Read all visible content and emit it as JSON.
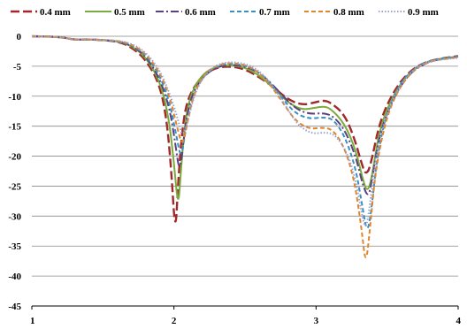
{
  "chart_data": {
    "type": "line",
    "title": "",
    "xlabel": "",
    "ylabel": "",
    "xlim": [
      1,
      4
    ],
    "ylim": [
      -45,
      0
    ],
    "x_ticks": [
      "1",
      "2",
      "3",
      "4"
    ],
    "y_ticks": [
      "0",
      "-5",
      "-10",
      "-15",
      "-20",
      "-25",
      "-30",
      "-35",
      "-40",
      "-45"
    ],
    "grid": "horizontal",
    "legend_position": "top",
    "series": [
      {
        "name": "0.4 mm",
        "color": "#a0282a",
        "dash": "long-dash",
        "points": [
          [
            1,
            0
          ],
          [
            1.2,
            -0.1
          ],
          [
            1.3,
            -0.6
          ],
          [
            1.4,
            -0.5
          ],
          [
            1.6,
            -0.8
          ],
          [
            1.7,
            -1.8
          ],
          [
            1.8,
            -3.8
          ],
          [
            1.9,
            -8
          ],
          [
            1.95,
            -14
          ],
          [
            1.98,
            -22
          ],
          [
            2.01,
            -33.5
          ],
          [
            2.03,
            -24
          ],
          [
            2.06,
            -15
          ],
          [
            2.1,
            -10
          ],
          [
            2.2,
            -6.5
          ],
          [
            2.3,
            -5.2
          ],
          [
            2.4,
            -5
          ],
          [
            2.5,
            -5.5
          ],
          [
            2.6,
            -6.8
          ],
          [
            2.7,
            -8.5
          ],
          [
            2.8,
            -10.5
          ],
          [
            2.9,
            -11.5
          ],
          [
            3.0,
            -11
          ],
          [
            3.05,
            -10.7
          ],
          [
            3.1,
            -11
          ],
          [
            3.2,
            -13
          ],
          [
            3.27,
            -17
          ],
          [
            3.33,
            -22
          ],
          [
            3.35,
            -23
          ],
          [
            3.38,
            -22
          ],
          [
            3.45,
            -14
          ],
          [
            3.55,
            -9
          ],
          [
            3.65,
            -6
          ],
          [
            3.75,
            -4.5
          ],
          [
            3.85,
            -3.8
          ],
          [
            4.0,
            -3.3
          ]
        ]
      },
      {
        "name": "0.5 mm",
        "color": "#7aab3c",
        "dash": "solid",
        "points": [
          [
            1,
            0
          ],
          [
            1.2,
            -0.1
          ],
          [
            1.3,
            -0.6
          ],
          [
            1.4,
            -0.5
          ],
          [
            1.6,
            -0.8
          ],
          [
            1.7,
            -1.6
          ],
          [
            1.8,
            -3.4
          ],
          [
            1.9,
            -7.4
          ],
          [
            1.96,
            -13
          ],
          [
            2.0,
            -21
          ],
          [
            2.03,
            -29
          ],
          [
            2.05,
            -22
          ],
          [
            2.08,
            -14
          ],
          [
            2.12,
            -9.5
          ],
          [
            2.2,
            -6.3
          ],
          [
            2.3,
            -5.0
          ],
          [
            2.4,
            -4.8
          ],
          [
            2.5,
            -5.2
          ],
          [
            2.6,
            -6.5
          ],
          [
            2.7,
            -8.6
          ],
          [
            2.8,
            -11
          ],
          [
            2.9,
            -12.3
          ],
          [
            3.0,
            -11.9
          ],
          [
            3.05,
            -11.7
          ],
          [
            3.1,
            -12
          ],
          [
            3.2,
            -14.5
          ],
          [
            3.28,
            -19
          ],
          [
            3.33,
            -24
          ],
          [
            3.36,
            -26
          ],
          [
            3.39,
            -24
          ],
          [
            3.45,
            -15
          ],
          [
            3.55,
            -9.5
          ],
          [
            3.65,
            -6.2
          ],
          [
            3.75,
            -4.6
          ],
          [
            3.85,
            -3.8
          ],
          [
            4.0,
            -3.4
          ]
        ]
      },
      {
        "name": "0.6 mm",
        "color": "#5b3f7e",
        "dash": "dash-dot",
        "points": [
          [
            1,
            0
          ],
          [
            1.2,
            -0.1
          ],
          [
            1.3,
            -0.6
          ],
          [
            1.4,
            -0.5
          ],
          [
            1.6,
            -0.8
          ],
          [
            1.7,
            -1.5
          ],
          [
            1.8,
            -3.2
          ],
          [
            1.9,
            -7
          ],
          [
            1.97,
            -12
          ],
          [
            2.01,
            -18
          ],
          [
            2.04,
            -23
          ],
          [
            2.07,
            -17
          ],
          [
            2.1,
            -12
          ],
          [
            2.15,
            -8.5
          ],
          [
            2.25,
            -5.7
          ],
          [
            2.35,
            -4.8
          ],
          [
            2.45,
            -4.8
          ],
          [
            2.55,
            -5.4
          ],
          [
            2.65,
            -7
          ],
          [
            2.75,
            -9.5
          ],
          [
            2.85,
            -12
          ],
          [
            2.95,
            -13
          ],
          [
            3.05,
            -12.8
          ],
          [
            3.12,
            -13.3
          ],
          [
            3.2,
            -15.5
          ],
          [
            3.28,
            -20
          ],
          [
            3.33,
            -25
          ],
          [
            3.37,
            -27
          ],
          [
            3.4,
            -23
          ],
          [
            3.45,
            -16
          ],
          [
            3.55,
            -10
          ],
          [
            3.65,
            -6.4
          ],
          [
            3.75,
            -4.7
          ],
          [
            3.85,
            -3.9
          ],
          [
            4.0,
            -3.4
          ]
        ]
      },
      {
        "name": "0.7 mm",
        "color": "#3c8fc0",
        "dash": "short-dash",
        "points": [
          [
            1,
            0
          ],
          [
            1.2,
            -0.1
          ],
          [
            1.3,
            -0.6
          ],
          [
            1.4,
            -0.5
          ],
          [
            1.6,
            -0.8
          ],
          [
            1.7,
            -1.4
          ],
          [
            1.8,
            -3.0
          ],
          [
            1.9,
            -6.5
          ],
          [
            1.97,
            -11
          ],
          [
            2.02,
            -17
          ],
          [
            2.05,
            -20.5
          ],
          [
            2.08,
            -16
          ],
          [
            2.12,
            -11
          ],
          [
            2.17,
            -8
          ],
          [
            2.25,
            -5.6
          ],
          [
            2.35,
            -4.6
          ],
          [
            2.45,
            -4.6
          ],
          [
            2.55,
            -5.3
          ],
          [
            2.65,
            -7
          ],
          [
            2.75,
            -10
          ],
          [
            2.85,
            -12.8
          ],
          [
            2.95,
            -13.8
          ],
          [
            3.05,
            -13.5
          ],
          [
            3.12,
            -13.8
          ],
          [
            3.2,
            -16.5
          ],
          [
            3.28,
            -22
          ],
          [
            3.33,
            -29
          ],
          [
            3.36,
            -33
          ],
          [
            3.39,
            -29
          ],
          [
            3.43,
            -20
          ],
          [
            3.5,
            -12.5
          ],
          [
            3.6,
            -7.5
          ],
          [
            3.7,
            -5.2
          ],
          [
            3.8,
            -4
          ],
          [
            4.0,
            -3.4
          ]
        ]
      },
      {
        "name": "0.8 mm",
        "color": "#e0852e",
        "dash": "short-dash",
        "points": [
          [
            1,
            0
          ],
          [
            1.2,
            -0.1
          ],
          [
            1.3,
            -0.6
          ],
          [
            1.4,
            -0.5
          ],
          [
            1.6,
            -0.7
          ],
          [
            1.7,
            -1.3
          ],
          [
            1.8,
            -2.8
          ],
          [
            1.9,
            -6
          ],
          [
            1.97,
            -10
          ],
          [
            2.02,
            -15
          ],
          [
            2.06,
            -18.5
          ],
          [
            2.09,
            -15
          ],
          [
            2.13,
            -10.5
          ],
          [
            2.18,
            -7.5
          ],
          [
            2.26,
            -5.3
          ],
          [
            2.35,
            -4.5
          ],
          [
            2.45,
            -4.5
          ],
          [
            2.55,
            -5.2
          ],
          [
            2.65,
            -7.2
          ],
          [
            2.75,
            -10.5
          ],
          [
            2.85,
            -14
          ],
          [
            2.95,
            -15.5
          ],
          [
            3.05,
            -15.2
          ],
          [
            3.12,
            -15.6
          ],
          [
            3.2,
            -18.5
          ],
          [
            3.27,
            -24
          ],
          [
            3.32,
            -32
          ],
          [
            3.35,
            -38.5
          ],
          [
            3.38,
            -32
          ],
          [
            3.42,
            -22
          ],
          [
            3.5,
            -13
          ],
          [
            3.6,
            -8
          ],
          [
            3.7,
            -5.4
          ],
          [
            3.8,
            -4.1
          ],
          [
            4.0,
            -3.5
          ]
        ]
      },
      {
        "name": "0.9 mm",
        "color": "#9aa3d0",
        "dash": "dotted",
        "points": [
          [
            1,
            0
          ],
          [
            1.2,
            -0.1
          ],
          [
            1.3,
            -0.6
          ],
          [
            1.4,
            -0.5
          ],
          [
            1.6,
            -0.7
          ],
          [
            1.7,
            -1.2
          ],
          [
            1.8,
            -2.6
          ],
          [
            1.9,
            -5.6
          ],
          [
            1.97,
            -9.5
          ],
          [
            2.03,
            -14
          ],
          [
            2.06,
            -17
          ],
          [
            2.1,
            -14
          ],
          [
            2.14,
            -10
          ],
          [
            2.2,
            -7
          ],
          [
            2.28,
            -5
          ],
          [
            2.37,
            -4.3
          ],
          [
            2.47,
            -4.4
          ],
          [
            2.57,
            -5.2
          ],
          [
            2.67,
            -7.4
          ],
          [
            2.77,
            -11
          ],
          [
            2.87,
            -14.8
          ],
          [
            2.97,
            -16.3
          ],
          [
            3.07,
            -16
          ],
          [
            3.14,
            -16.5
          ],
          [
            3.22,
            -19.5
          ],
          [
            3.28,
            -24
          ],
          [
            3.32,
            -29.5
          ],
          [
            3.35,
            -32.5
          ],
          [
            3.38,
            -28
          ],
          [
            3.42,
            -20
          ],
          [
            3.5,
            -12.5
          ],
          [
            3.6,
            -7.8
          ],
          [
            3.7,
            -5.3
          ],
          [
            3.8,
            -4.1
          ],
          [
            4.0,
            -3.6
          ]
        ]
      }
    ]
  }
}
